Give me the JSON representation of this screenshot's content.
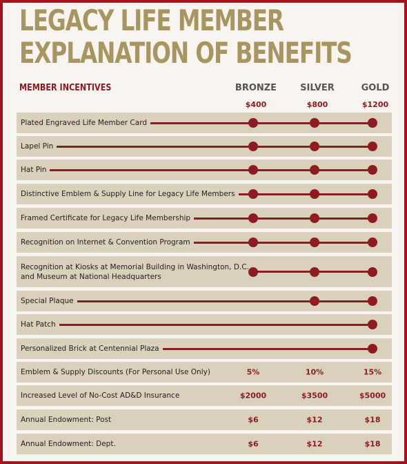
{
  "title": {
    "line1": "LEGACY LIFE MEMBER",
    "line2": "EXPLANATION OF BENEFITS"
  },
  "header": {
    "incentives_label": "MEMBER INCENTIVES"
  },
  "tiers": [
    {
      "name": "BRONZE",
      "price": "$400"
    },
    {
      "name": "SILVER",
      "price": "$800"
    },
    {
      "name": "GOLD",
      "price": "$1200"
    }
  ],
  "benefits": [
    {
      "label": "Plated Engraved Life Member Card",
      "tiers": [
        true,
        true,
        true
      ]
    },
    {
      "label": "Lapel Pin",
      "tiers": [
        true,
        true,
        true
      ]
    },
    {
      "label": "Hat Pin",
      "tiers": [
        true,
        true,
        true
      ]
    },
    {
      "label": "Distinctive Emblem & Supply Line for Legacy Life Members",
      "tiers": [
        true,
        true,
        true
      ]
    },
    {
      "label": "Framed Certificate for Legacy Life Membership",
      "tiers": [
        true,
        true,
        true
      ]
    },
    {
      "label": "Recognition on Internet & Convention Program",
      "tiers": [
        true,
        true,
        true
      ]
    },
    {
      "label": "Recognition at Kiosks at Memorial Building in Washington, D.C.\nand Museum at National Headquarters",
      "tiers": [
        true,
        true,
        true
      ]
    },
    {
      "label": "Special Plaque",
      "tiers": [
        false,
        true,
        true
      ]
    },
    {
      "label": "Hat Patch",
      "tiers": [
        false,
        false,
        true
      ]
    },
    {
      "label": "Personalized Brick at Centennial Plaza",
      "tiers": [
        false,
        false,
        true
      ]
    },
    {
      "label": "Emblem & Supply Discounts (For Personal Use Only)",
      "values": [
        "5%",
        "10%",
        "15%"
      ]
    },
    {
      "label": "Increased Level of No-Cost AD&D Insurance",
      "values": [
        "$2000",
        "$3500",
        "$5000"
      ]
    },
    {
      "label": "Annual Endowment: Post",
      "values": [
        "$6",
        "$12",
        "$18"
      ]
    },
    {
      "label": "Annual Endowment: Dept.",
      "values": [
        "$6",
        "$12",
        "$18"
      ]
    }
  ],
  "colors": {
    "accent": "#8c1c22",
    "title": "#a89662",
    "row_bg": "#d9d1bc",
    "page_bg": "#f8f4ef",
    "border": "#a4121e"
  }
}
